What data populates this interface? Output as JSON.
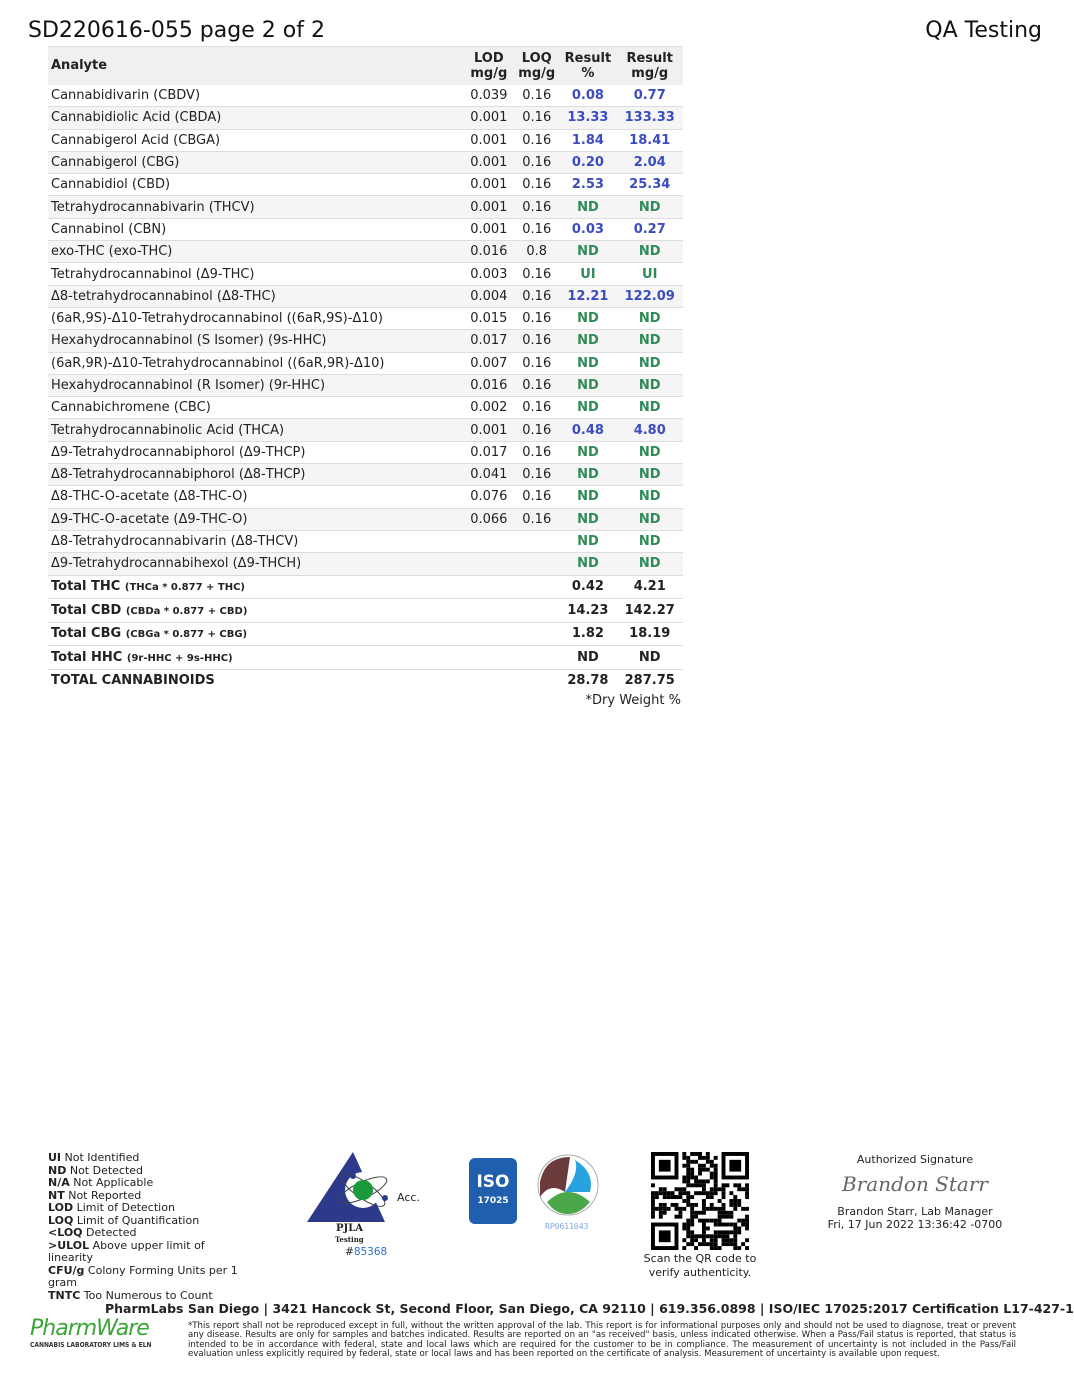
{
  "header": {
    "title": "SD220616-055 page 2 of 2",
    "right": "QA Testing"
  },
  "table": {
    "columns": [
      "Analyte",
      "LOD mg/g",
      "LOQ mg/g",
      "Result %",
      "Result mg/g"
    ],
    "col_lines": [
      [
        "Analyte"
      ],
      [
        "LOD",
        "mg/g"
      ],
      [
        "LOQ",
        "mg/g"
      ],
      [
        "Result",
        "%"
      ],
      [
        "Result",
        "mg/g"
      ]
    ],
    "rows": [
      {
        "analyte": "Cannabidivarin (CBDV)",
        "lod": "0.039",
        "loq": "0.16",
        "pct": "0.08",
        "mg": "0.77",
        "status": "detected"
      },
      {
        "analyte": "Cannabidiolic Acid (CBDA)",
        "lod": "0.001",
        "loq": "0.16",
        "pct": "13.33",
        "mg": "133.33",
        "status": "detected"
      },
      {
        "analyte": "Cannabigerol Acid (CBGA)",
        "lod": "0.001",
        "loq": "0.16",
        "pct": "1.84",
        "mg": "18.41",
        "status": "detected"
      },
      {
        "analyte": "Cannabigerol (CBG)",
        "lod": "0.001",
        "loq": "0.16",
        "pct": "0.20",
        "mg": "2.04",
        "status": "detected"
      },
      {
        "analyte": "Cannabidiol (CBD)",
        "lod": "0.001",
        "loq": "0.16",
        "pct": "2.53",
        "mg": "25.34",
        "status": "detected"
      },
      {
        "analyte": "Tetrahydrocannabivarin (THCV)",
        "lod": "0.001",
        "loq": "0.16",
        "pct": "ND",
        "mg": "ND",
        "status": "nd"
      },
      {
        "analyte": "Cannabinol (CBN)",
        "lod": "0.001",
        "loq": "0.16",
        "pct": "0.03",
        "mg": "0.27",
        "status": "detected"
      },
      {
        "analyte": "exo-THC (exo-THC)",
        "lod": "0.016",
        "loq": "0.8",
        "pct": "ND",
        "mg": "ND",
        "status": "nd"
      },
      {
        "analyte": "Tetrahydrocannabinol (Δ9-THC)",
        "lod": "0.003",
        "loq": "0.16",
        "pct": "UI",
        "mg": "UI",
        "status": "nd"
      },
      {
        "analyte": "Δ8-tetrahydrocannabinol (Δ8-THC)",
        "lod": "0.004",
        "loq": "0.16",
        "pct": "12.21",
        "mg": "122.09",
        "status": "detected"
      },
      {
        "analyte": "(6aR,9S)-Δ10-Tetrahydrocannabinol ((6aR,9S)-Δ10)",
        "lod": "0.015",
        "loq": "0.16",
        "pct": "ND",
        "mg": "ND",
        "status": "nd"
      },
      {
        "analyte": "Hexahydrocannabinol (S Isomer) (9s-HHC)",
        "lod": "0.017",
        "loq": "0.16",
        "pct": "ND",
        "mg": "ND",
        "status": "nd"
      },
      {
        "analyte": "(6aR,9R)-Δ10-Tetrahydrocannabinol ((6aR,9R)-Δ10)",
        "lod": "0.007",
        "loq": "0.16",
        "pct": "ND",
        "mg": "ND",
        "status": "nd"
      },
      {
        "analyte": "Hexahydrocannabinol (R Isomer) (9r-HHC)",
        "lod": "0.016",
        "loq": "0.16",
        "pct": "ND",
        "mg": "ND",
        "status": "nd"
      },
      {
        "analyte": "Cannabichromene (CBC)",
        "lod": "0.002",
        "loq": "0.16",
        "pct": "ND",
        "mg": "ND",
        "status": "nd"
      },
      {
        "analyte": "Tetrahydrocannabinolic Acid (THCA)",
        "lod": "0.001",
        "loq": "0.16",
        "pct": "0.48",
        "mg": "4.80",
        "status": "detected"
      },
      {
        "analyte": "Δ9-Tetrahydrocannabiphorol (Δ9-THCP)",
        "lod": "0.017",
        "loq": "0.16",
        "pct": "ND",
        "mg": "ND",
        "status": "nd"
      },
      {
        "analyte": "Δ8-Tetrahydrocannabiphorol (Δ8-THCP)",
        "lod": "0.041",
        "loq": "0.16",
        "pct": "ND",
        "mg": "ND",
        "status": "nd"
      },
      {
        "analyte": "Δ8-THC-O-acetate (Δ8-THC-O)",
        "lod": "0.076",
        "loq": "0.16",
        "pct": "ND",
        "mg": "ND",
        "status": "nd"
      },
      {
        "analyte": "Δ9-THC-O-acetate (Δ9-THC-O)",
        "lod": "0.066",
        "loq": "0.16",
        "pct": "ND",
        "mg": "ND",
        "status": "nd"
      },
      {
        "analyte": "Δ8-Tetrahydrocannabivarin (Δ8-THCV)",
        "lod": "",
        "loq": "",
        "pct": "ND",
        "mg": "ND",
        "status": "nd"
      },
      {
        "analyte": "Δ9-Tetrahydrocannabihexol (Δ9-THCH)",
        "lod": "",
        "loq": "",
        "pct": "ND",
        "mg": "ND",
        "status": "nd"
      }
    ],
    "totals": [
      {
        "label": "Total THC",
        "formula": "(THCa * 0.877 + THC)",
        "pct": "0.42",
        "mg": "4.21"
      },
      {
        "label": "Total CBD",
        "formula": "(CBDa * 0.877 + CBD)",
        "pct": "14.23",
        "mg": "142.27"
      },
      {
        "label": "Total CBG",
        "formula": "(CBGa * 0.877 + CBG)",
        "pct": "1.82",
        "mg": "18.19"
      },
      {
        "label": "Total HHC",
        "formula": "(9r-HHC + 9s-HHC)",
        "pct": "ND",
        "mg": "ND"
      }
    ],
    "grand": {
      "label": "TOTAL CANNABINOIDS",
      "pct": "28.78",
      "mg": "287.75"
    },
    "note": "*Dry Weight %"
  },
  "colors": {
    "detected": "#3b4cc0",
    "nd": "#2e8b57"
  },
  "legend": [
    [
      "UI",
      "Not Identified"
    ],
    [
      "ND",
      "Not Detected"
    ],
    [
      "N/A",
      "Not Applicable"
    ],
    [
      "NT",
      "Not Reported"
    ],
    [
      "LOD",
      "Limit of Detection"
    ],
    [
      "LOQ",
      "Limit of Quantification"
    ],
    [
      "<LOQ",
      "Detected"
    ],
    [
      ">ULOL",
      "Above upper limit of linearity"
    ],
    [
      "CFU/g",
      "Colony Forming Units per 1 gram"
    ],
    [
      "TNTC",
      "Too Numerous to Count"
    ]
  ],
  "pjla": {
    "acc": "Acc.",
    "name": "PJLA",
    "sub": "Testing",
    "number_prefix": "#",
    "number": "85368"
  },
  "iso": {
    "text": "ISO",
    "num": "17025"
  },
  "dea": {
    "reg": "RP0611043"
  },
  "qr": {
    "caption": "Scan the QR code to verify authenticity."
  },
  "signature": {
    "heading": "Authorized Signature",
    "script": "Brandon Starr",
    "name": "Brandon Starr, Lab Manager",
    "date": "Fri, 17 Jun 2022 13:36:42 -0700"
  },
  "footer": {
    "address": "PharmLabs San Diego | 3421 Hancock St, Second Floor, San Diego, CA 92110 | 619.356.0898 | ISO/IEC 17025:2017 Certification L17-427-1",
    "logo": "PharmWare",
    "logo_sub": "CANNABIS LABORATORY LIMS & ELN",
    "disclaimer": "*This report shall not be reproduced except in full, without the written approval of the lab. This report is for informational purposes only and should not be used to diagnose, treat or prevent any disease. Results are only for samples and batches indicated. Results are reported on an \"as received\" basis, unless indicated otherwise. When a Pass/Fail status is reported, that status is intended to be in accordance with federal, state and local laws which are required for the customer to be in compliance. The measurement of uncertainty is not included in the Pass/Fail evaluation unless explicitly required by federal, state or local laws and has been reported on the certificate of analysis. Measurement of uncertainty is available upon request."
  }
}
